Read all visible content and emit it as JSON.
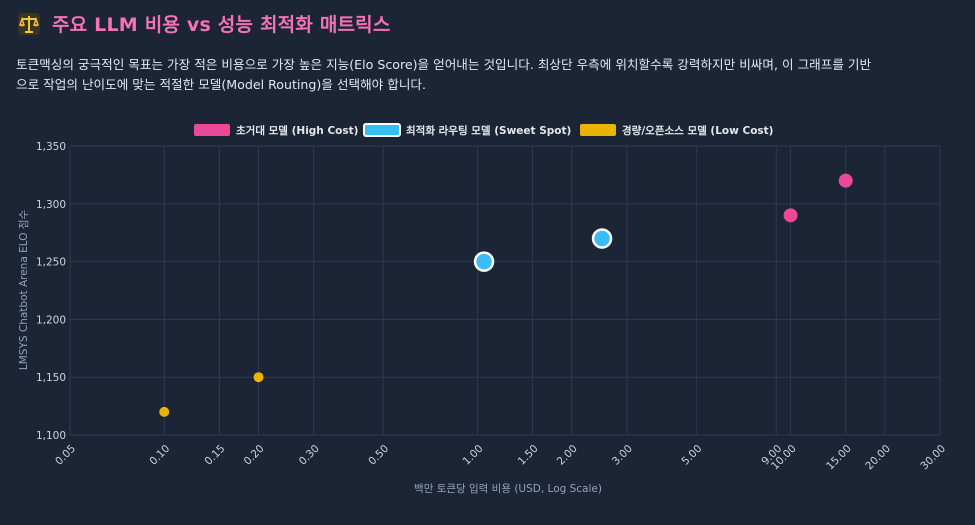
{
  "header": {
    "title": "주요 LLM 비용 vs 성능 최적화 매트릭스",
    "icon": "scales-icon",
    "description": "토큰맥싱의 궁극적인 목표는 가장 적은 비용으로 가장 높은 지능(Elo Score)을 얻어내는 것입니다. 최상단 우측에 위치할수록 강력하지만 비싸며, 이 그래프를 기반으로 작업의 난이도에 맞는 적절한 모델(Model Routing)을 선택해야 합니다."
  },
  "chart_data": {
    "type": "scatter",
    "title": "",
    "xlabel": "백만 토큰당 입력 비용 (USD, Log Scale)",
    "ylabel": "LMSYS Chatbot Arena ELO 점수",
    "xscale": "log",
    "xlim": [
      0.05,
      30
    ],
    "ylim": [
      1100,
      1350
    ],
    "x_ticks": [
      {
        "value": 0.05,
        "label": "0.05"
      },
      {
        "value": 0.1,
        "label": "0.10"
      },
      {
        "value": 0.15,
        "label": "0.15"
      },
      {
        "value": 0.2,
        "label": "0.20"
      },
      {
        "value": 0.3,
        "label": "0.30"
      },
      {
        "value": 0.5,
        "label": "0.50"
      },
      {
        "value": 1,
        "label": "1.00"
      },
      {
        "value": 1.5,
        "label": "1.50"
      },
      {
        "value": 2,
        "label": "2.00"
      },
      {
        "value": 3,
        "label": "3.00"
      },
      {
        "value": 5,
        "label": "5.00"
      },
      {
        "value": 9,
        "label": "9.00"
      },
      {
        "value": 10,
        "label": "10.00"
      },
      {
        "value": 15,
        "label": "15.00"
      },
      {
        "value": 20,
        "label": "20.00"
      },
      {
        "value": 30,
        "label": "30.00"
      }
    ],
    "y_ticks": [
      {
        "value": 1100,
        "label": "1,100"
      },
      {
        "value": 1150,
        "label": "1,150"
      },
      {
        "value": 1200,
        "label": "1,200"
      },
      {
        "value": 1250,
        "label": "1,250"
      },
      {
        "value": 1300,
        "label": "1,300"
      },
      {
        "value": 1350,
        "label": "1,350"
      }
    ],
    "grid": true,
    "legend_position": "top-center",
    "series": [
      {
        "name": "초거대 모델 (High Cost)",
        "color": "#ec4899",
        "points": [
          {
            "x": 10,
            "y": 1290
          },
          {
            "x": 15,
            "y": 1320
          }
        ]
      },
      {
        "name": "최적화 라우팅 모델 (Sweet Spot)",
        "color": "#38bdf8",
        "points": [
          {
            "x": 1.05,
            "y": 1250
          },
          {
            "x": 2.5,
            "y": 1270
          }
        ]
      },
      {
        "name": "경량/오픈소스 모델 (Low Cost)",
        "color": "#eab308",
        "points": [
          {
            "x": 0.1,
            "y": 1120
          },
          {
            "x": 0.2,
            "y": 1150
          }
        ]
      }
    ]
  }
}
